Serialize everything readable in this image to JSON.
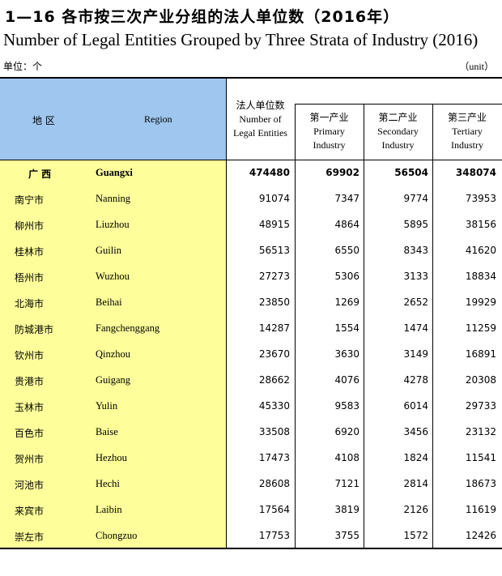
{
  "title": {
    "cn": "1—16  各市按三次产业分组的法人单位数（2016年）",
    "en": "Number of Legal Entities Grouped by Three Strata of Industry (2016)"
  },
  "unit": {
    "cn": "单位：个",
    "en": "（unit）"
  },
  "header": {
    "region_cn": "地  区",
    "region_en": "Region",
    "total_cn": "法人单位数",
    "total_en_line1": "Number of",
    "total_en_line2": "Legal Entities",
    "primary_cn": "第一产业",
    "primary_en_line1": "Primary",
    "primary_en_line2": "Industry",
    "secondary_cn": "第二产业",
    "secondary_en_line1": "Secondary",
    "secondary_en_line2": "Industry",
    "tertiary_cn": "第三产业",
    "tertiary_en_line1": "Tertiary",
    "tertiary_en_line2": "Industry"
  },
  "rows": [
    {
      "cn": "广   西",
      "en": "Guangxi",
      "total": "474480",
      "primary": "69902",
      "secondary": "56504",
      "tertiary": "348074"
    },
    {
      "cn": "南宁市",
      "en": "Nanning",
      "total": "91074",
      "primary": "7347",
      "secondary": "9774",
      "tertiary": "73953"
    },
    {
      "cn": "柳州市",
      "en": "Liuzhou",
      "total": "48915",
      "primary": "4864",
      "secondary": "5895",
      "tertiary": "38156"
    },
    {
      "cn": "桂林市",
      "en": "Guilin",
      "total": "56513",
      "primary": "6550",
      "secondary": "8343",
      "tertiary": "41620"
    },
    {
      "cn": "梧州市",
      "en": "Wuzhou",
      "total": "27273",
      "primary": "5306",
      "secondary": "3133",
      "tertiary": "18834"
    },
    {
      "cn": "北海市",
      "en": "Beihai",
      "total": "23850",
      "primary": "1269",
      "secondary": "2652",
      "tertiary": "19929"
    },
    {
      "cn": "防城港市",
      "en": "Fangchenggang",
      "total": "14287",
      "primary": "1554",
      "secondary": "1474",
      "tertiary": "11259"
    },
    {
      "cn": "钦州市",
      "en": "Qinzhou",
      "total": "23670",
      "primary": "3630",
      "secondary": "3149",
      "tertiary": "16891"
    },
    {
      "cn": "贵港市",
      "en": "Guigang",
      "total": "28662",
      "primary": "4076",
      "secondary": "4278",
      "tertiary": "20308"
    },
    {
      "cn": "玉林市",
      "en": "Yulin",
      "total": "45330",
      "primary": "9583",
      "secondary": "6014",
      "tertiary": "29733"
    },
    {
      "cn": "百色市",
      "en": "Baise",
      "total": "33508",
      "primary": "6920",
      "secondary": "3456",
      "tertiary": "23132"
    },
    {
      "cn": "贺州市",
      "en": "Hezhou",
      "total": "17473",
      "primary": "4108",
      "secondary": "1824",
      "tertiary": "11541"
    },
    {
      "cn": "河池市",
      "en": "Hechi",
      "total": "28608",
      "primary": "7121",
      "secondary": "2814",
      "tertiary": "18673"
    },
    {
      "cn": "来宾市",
      "en": "Laibin",
      "total": "17564",
      "primary": "3819",
      "secondary": "2126",
      "tertiary": "11619"
    },
    {
      "cn": "崇左市",
      "en": "Chongzuo",
      "total": "17753",
      "primary": "3755",
      "secondary": "1572",
      "tertiary": "12426"
    }
  ],
  "colors": {
    "header_bg": "#9ec6ee",
    "region_bg": "#fefe9a"
  }
}
